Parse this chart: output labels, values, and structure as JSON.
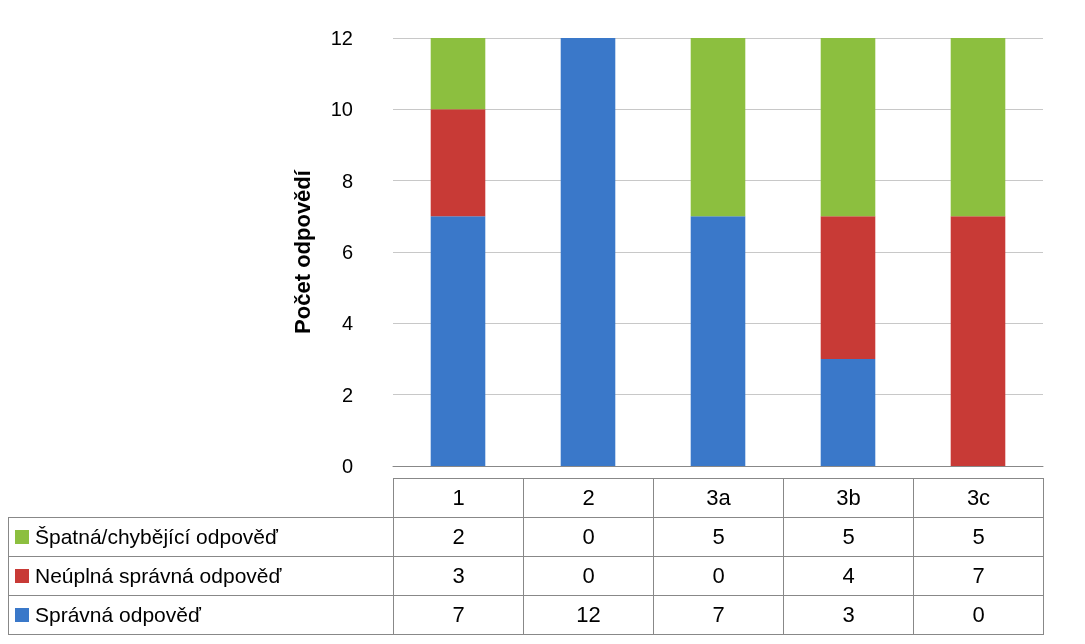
{
  "chart_data": {
    "type": "bar",
    "stacked": true,
    "ylabel": "Počet odpovědí",
    "categories": [
      "1",
      "2",
      "3a",
      "3b",
      "3c"
    ],
    "series": [
      {
        "name": "Správná odpověď",
        "color": "#3a78c9",
        "values": [
          7,
          12,
          7,
          3,
          0
        ]
      },
      {
        "name": "Neúplná správná odpověď",
        "color": "#c83a36",
        "values": [
          3,
          0,
          0,
          4,
          7
        ]
      },
      {
        "name": "Špatná/chybějící odpověď",
        "color": "#8cbf3f",
        "values": [
          2,
          0,
          5,
          5,
          5
        ]
      }
    ],
    "ylim": [
      0,
      12
    ],
    "yticks": [
      0,
      2,
      4,
      6,
      8,
      10,
      12
    ],
    "grid": "y",
    "legend": "bottom",
    "data_labels": true
  }
}
